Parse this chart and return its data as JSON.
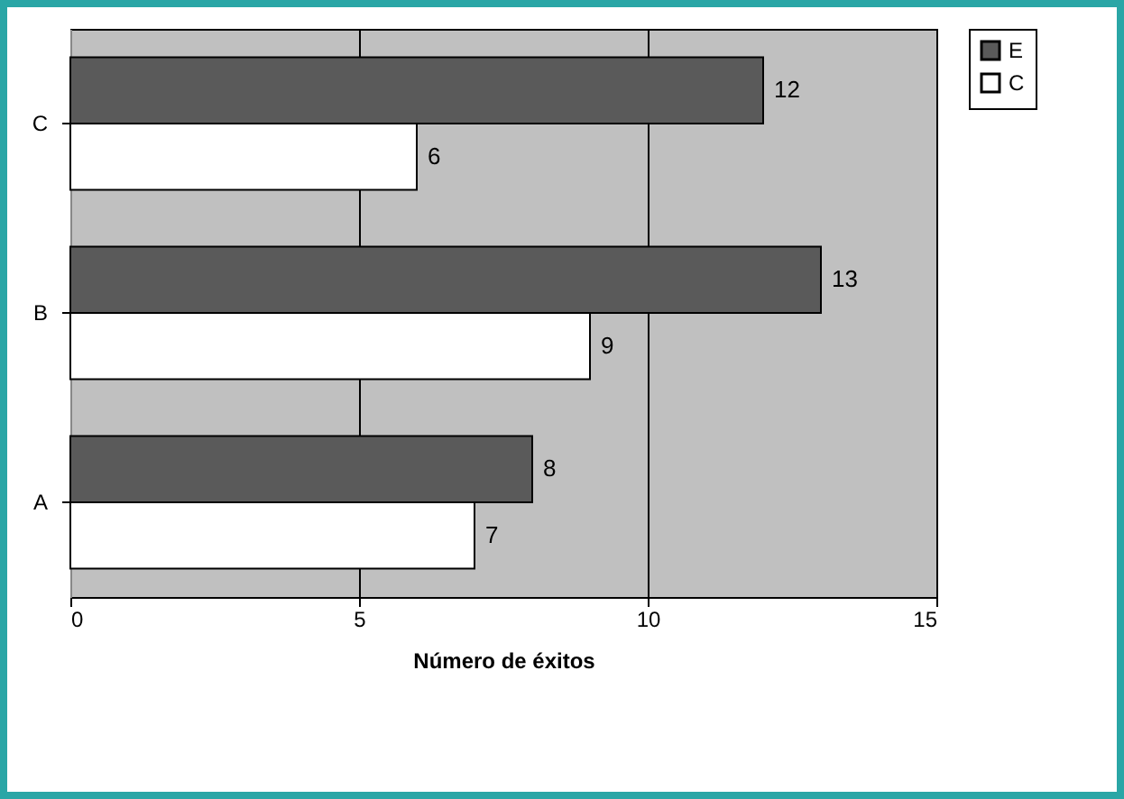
{
  "chart_data": {
    "type": "bar",
    "orientation": "horizontal",
    "categories": [
      "C",
      "B",
      "A"
    ],
    "series": [
      {
        "name": "E",
        "color": "#5a5a5a",
        "values": [
          12,
          13,
          8
        ]
      },
      {
        "name": "C",
        "color": "#ffffff",
        "values": [
          6,
          9,
          7
        ]
      }
    ],
    "xlabel": "Número de éxitos",
    "xlim": [
      0,
      15
    ],
    "xticks": [
      0,
      5,
      10,
      15
    ],
    "grid": "x",
    "legend": "right",
    "data_labels": true
  }
}
